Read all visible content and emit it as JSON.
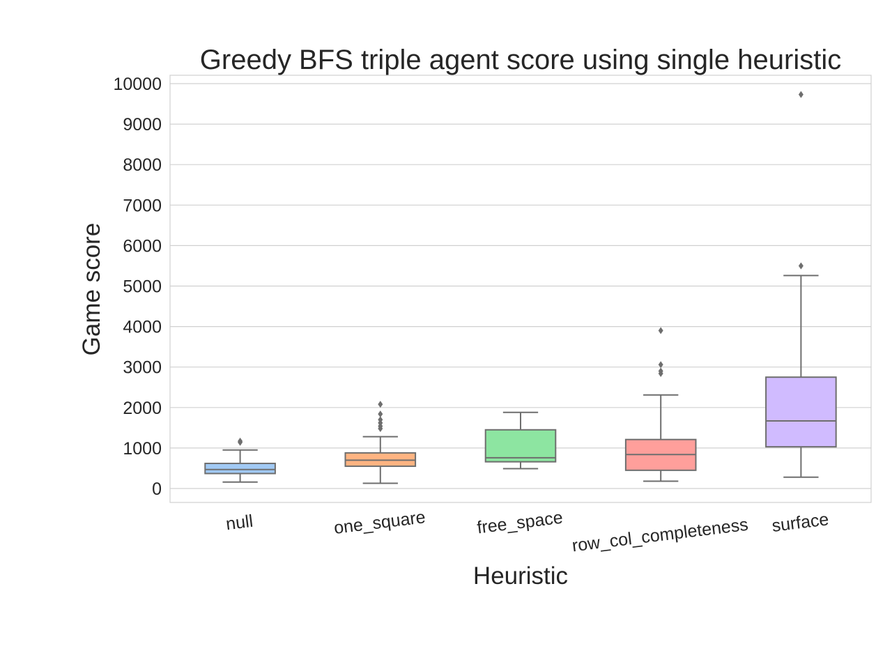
{
  "chart_data": {
    "type": "box",
    "title": "Greedy BFS triple agent score using single heuristic",
    "xlabel": "Heuristic",
    "ylabel": "Game score",
    "ylim": [
      -350,
      10200
    ],
    "yticks": [
      0,
      1000,
      2000,
      3000,
      4000,
      5000,
      6000,
      7000,
      8000,
      9000,
      10000
    ],
    "grid": "horizontal",
    "categories": [
      "null",
      "one_square",
      "free_space",
      "row_col_completeness",
      "surface"
    ],
    "series": [
      {
        "category": "null",
        "whisker_low": 160,
        "q1": 370,
        "median": 470,
        "q3": 620,
        "whisker_high": 950,
        "outliers": [
          1140,
          1170
        ],
        "color": "#a1c9f4"
      },
      {
        "category": "one_square",
        "whisker_low": 130,
        "q1": 550,
        "median": 700,
        "q3": 880,
        "whisker_high": 1280,
        "outliers": [
          1480,
          1540,
          1620,
          1700,
          1840,
          2080
        ],
        "color": "#ffb482"
      },
      {
        "category": "free_space",
        "whisker_low": 490,
        "q1": 660,
        "median": 760,
        "q3": 1450,
        "whisker_high": 1880,
        "outliers": [],
        "color": "#8de5a1"
      },
      {
        "category": "row_col_completeness",
        "whisker_low": 180,
        "q1": 450,
        "median": 840,
        "q3": 1210,
        "whisker_high": 2310,
        "outliers": [
          2840,
          2900,
          3060,
          3900
        ],
        "color": "#ff9f9b"
      },
      {
        "category": "surface",
        "whisker_low": 280,
        "q1": 1030,
        "median": 1670,
        "q3": 2750,
        "whisker_high": 5260,
        "outliers": [
          5500,
          9730
        ],
        "color": "#d0bbff"
      }
    ],
    "box_edge_color": "#6e6e6e",
    "grid_color": "#d0d0d0"
  }
}
